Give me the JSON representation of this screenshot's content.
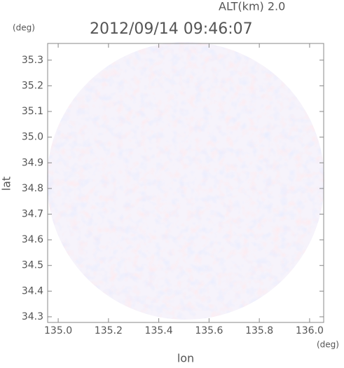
{
  "chart_data": {
    "type": "image",
    "title": "2012/09/14 09:46:07",
    "annotation": "ALT(km) 2.0",
    "x_label": "lon",
    "y_label": "lat",
    "x_unit": "(deg)",
    "y_unit": "(deg)",
    "xlim": [
      134.958,
      136.056
    ],
    "ylim": [
      34.278,
      35.365
    ],
    "xticks": [
      {
        "value": 135.0,
        "label": "135.0"
      },
      135.2,
      135.4,
      135.6,
      135.8,
      {
        "value": 136.0,
        "label": "136.0"
      }
    ],
    "yticks": [
      34.3,
      34.4,
      34.5,
      34.6,
      34.7,
      34.8,
      34.9,
      {
        "value": 35.0,
        "label": "35.0"
      },
      35.1,
      35.2,
      35.3
    ]
  }
}
